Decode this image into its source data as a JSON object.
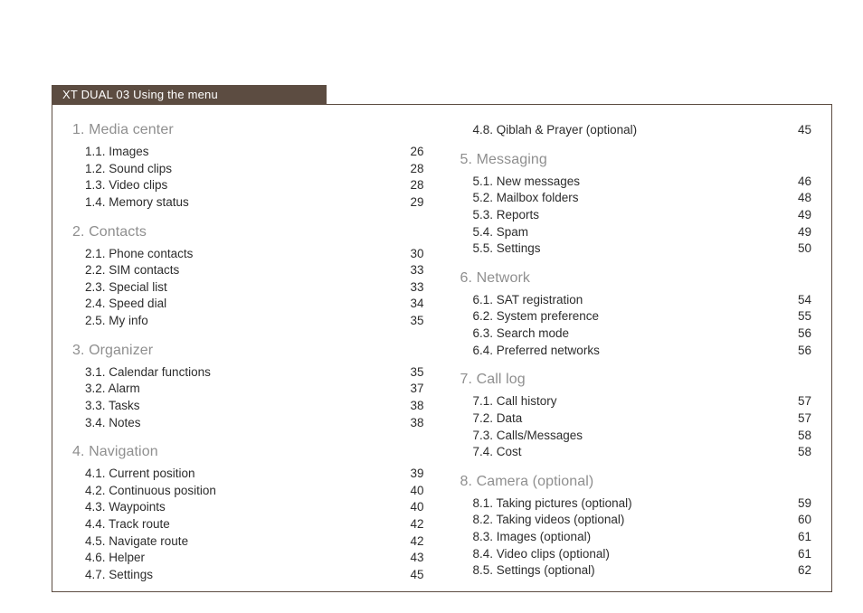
{
  "tab_title": "XT DUAL 03 Using the menu",
  "colors": {
    "tab_bg": "#5c4c41",
    "tab_text": "#ffffff",
    "frame_border": "#5c4c41",
    "section_title": "#8f8f8f",
    "body_text": "#2c2c2c",
    "page_bg": "#ffffff"
  },
  "left_column": [
    {
      "title": "1. Media center",
      "items": [
        {
          "label": "1.1. Images",
          "page": "26"
        },
        {
          "label": "1.2. Sound clips",
          "page": "28"
        },
        {
          "label": "1.3. Video clips",
          "page": "28"
        },
        {
          "label": "1.4. Memory status",
          "page": "29"
        }
      ]
    },
    {
      "title": "2. Contacts",
      "items": [
        {
          "label": "2.1. Phone contacts",
          "page": "30"
        },
        {
          "label": "2.2. SIM contacts",
          "page": "33"
        },
        {
          "label": "2.3. Special list",
          "page": "33"
        },
        {
          "label": "2.4. Speed dial",
          "page": "34"
        },
        {
          "label": "2.5. My info",
          "page": "35"
        }
      ]
    },
    {
      "title": "3. Organizer",
      "items": [
        {
          "label": "3.1. Calendar functions",
          "page": "35"
        },
        {
          "label": "3.2. Alarm",
          "page": "37"
        },
        {
          "label": "3.3. Tasks",
          "page": "38"
        },
        {
          "label": "3.4. Notes",
          "page": "38"
        }
      ]
    },
    {
      "title": "4. Navigation",
      "items": [
        {
          "label": "4.1. Current position",
          "page": "39"
        },
        {
          "label": "4.2. Continuous position",
          "page": "40"
        },
        {
          "label": "4.3. Waypoints",
          "page": "40"
        },
        {
          "label": "4.4. Track route",
          "page": "42"
        },
        {
          "label": "4.5. Navigate route",
          "page": "42"
        },
        {
          "label": "4.6. Helper",
          "page": "43"
        },
        {
          "label": "4.7. Settings",
          "page": "45"
        }
      ]
    }
  ],
  "right_column_orphans": [
    {
      "label": "4.8. Qiblah & Prayer (optional)",
      "page": "45"
    }
  ],
  "right_column": [
    {
      "title": "5. Messaging",
      "items": [
        {
          "label": "5.1. New messages",
          "page": "46"
        },
        {
          "label": "5.2. Mailbox folders",
          "page": "48"
        },
        {
          "label": "5.3. Reports",
          "page": "49"
        },
        {
          "label": "5.4. Spam",
          "page": "49"
        },
        {
          "label": "5.5. Settings",
          "page": "50"
        }
      ]
    },
    {
      "title": "6. Network",
      "items": [
        {
          "label": "6.1. SAT registration",
          "page": "54"
        },
        {
          "label": "6.2. System preference",
          "page": "55"
        },
        {
          "label": "6.3. Search mode",
          "page": "56"
        },
        {
          "label": "6.4. Preferred networks",
          "page": "56"
        }
      ]
    },
    {
      "title": "7. Call log",
      "items": [
        {
          "label": "7.1. Call history",
          "page": "57"
        },
        {
          "label": "7.2. Data",
          "page": "57"
        },
        {
          "label": "7.3. Calls/Messages",
          "page": "58"
        },
        {
          "label": "7.4. Cost",
          "page": "58"
        }
      ]
    },
    {
      "title": "8. Camera (optional)",
      "items": [
        {
          "label": "8.1. Taking pictures (optional)",
          "page": "59"
        },
        {
          "label": "8.2. Taking videos (optional)",
          "page": "60"
        },
        {
          "label": "8.3. Images (optional)",
          "page": "61"
        },
        {
          "label": "8.4. Video clips (optional)",
          "page": "61"
        },
        {
          "label": "8.5. Settings (optional)",
          "page": "62"
        }
      ]
    }
  ]
}
